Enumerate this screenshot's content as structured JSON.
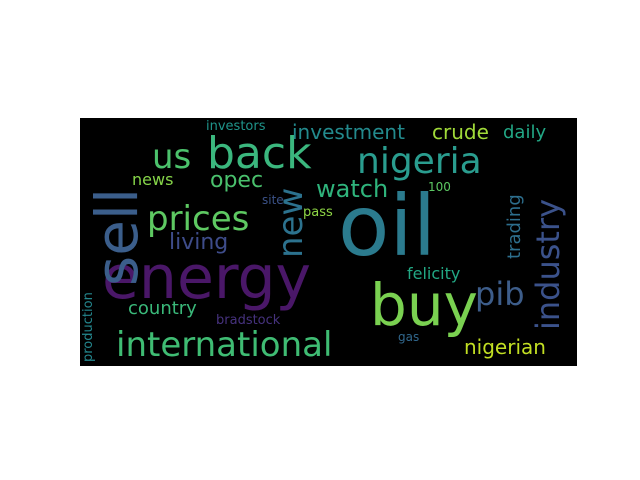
{
  "word_cloud": {
    "background": "#000000",
    "words": [
      {
        "text": "oil",
        "color": "#2b7b8e"
      },
      {
        "text": "energy",
        "color": "#4a1768"
      },
      {
        "text": "buy",
        "color": "#7ad151"
      },
      {
        "text": "sell",
        "color": "#3b5e8b"
      },
      {
        "text": "back",
        "color": "#3bb77e"
      },
      {
        "text": "international",
        "color": "#3fbc73"
      },
      {
        "text": "nigeria",
        "color": "#2a9d8f"
      },
      {
        "text": "prices",
        "color": "#5ec962"
      },
      {
        "text": "industry",
        "color": "#3b528b"
      },
      {
        "text": "us",
        "color": "#4cc26c"
      },
      {
        "text": "new",
        "color": "#2c728e"
      },
      {
        "text": "watch",
        "color": "#2fb47c"
      },
      {
        "text": "living",
        "color": "#3e4c8a"
      },
      {
        "text": "opec",
        "color": "#4ac16d"
      },
      {
        "text": "pib",
        "color": "#3d5d8a"
      },
      {
        "text": "investment",
        "color": "#238a8d"
      },
      {
        "text": "crude",
        "color": "#a0da39"
      },
      {
        "text": "daily",
        "color": "#22a785"
      },
      {
        "text": "news",
        "color": "#86d549"
      },
      {
        "text": "country",
        "color": "#3ab97a"
      },
      {
        "text": "trading",
        "color": "#2d6f8e"
      },
      {
        "text": "nigerian",
        "color": "#c2df23"
      },
      {
        "text": "felicity",
        "color": "#22a884"
      },
      {
        "text": "pass",
        "color": "#8ed645"
      },
      {
        "text": "100",
        "color": "#5cc863"
      },
      {
        "text": "investors",
        "color": "#1f958b"
      },
      {
        "text": "site",
        "color": "#3b5288"
      },
      {
        "text": "bradstock",
        "color": "#46327e"
      },
      {
        "text": "gas",
        "color": "#31688e"
      },
      {
        "text": "production",
        "color": "#24878e"
      }
    ]
  }
}
